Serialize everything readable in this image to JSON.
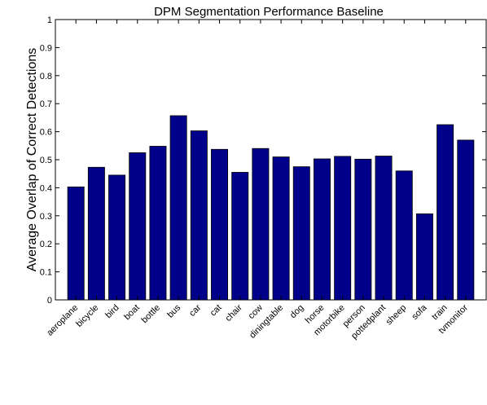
{
  "chart_data": {
    "type": "bar",
    "title": "DPM Segmentation Performance Baseline",
    "xlabel": "",
    "ylabel": "Average Overlap of Correct Detections",
    "ylim": [
      0,
      1
    ],
    "yticks": [
      "0",
      "0.1",
      "0.2",
      "0.3",
      "0.4",
      "0.5",
      "0.6",
      "0.7",
      "0.8",
      "0.9",
      "1"
    ],
    "grid": false,
    "bar_color": "#00008b",
    "categories": [
      "aeroplane",
      "bicycle",
      "bird",
      "boat",
      "bottle",
      "bus",
      "car",
      "cat",
      "chair",
      "cow",
      "diningtable",
      "dog",
      "horse",
      "motorbike",
      "person",
      "pottedplant",
      "sheep",
      "sofa",
      "train",
      "tvmonitor"
    ],
    "values": [
      0.403,
      0.473,
      0.445,
      0.525,
      0.548,
      0.657,
      0.603,
      0.537,
      0.455,
      0.54,
      0.51,
      0.475,
      0.503,
      0.512,
      0.502,
      0.513,
      0.46,
      0.307,
      0.625,
      0.57
    ]
  }
}
